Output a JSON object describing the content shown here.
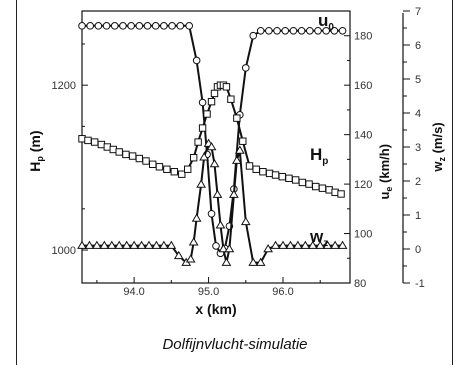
{
  "caption": "Dolfijnvlucht-simulatie",
  "chart_data": {
    "type": "line",
    "xlabel": "x (km)",
    "x_ticks": [
      94.0,
      95.0,
      96.0
    ],
    "xlim": [
      93.3,
      96.9
    ],
    "axes": {
      "Hp": {
        "label": "H",
        "label_sub": "p",
        "unit": "(m)",
        "ticks": [
          1000,
          1200
        ],
        "ylim": [
          960,
          1290
        ]
      },
      "ue": {
        "label": "u",
        "label_sub": "e",
        "unit": "(km/h)",
        "ticks": [
          80,
          100,
          120,
          140,
          160,
          180
        ],
        "ylim": [
          80,
          190
        ]
      },
      "wz": {
        "label": "w",
        "label_sub": "z",
        "unit": "(m/s)",
        "ticks": [
          -1,
          0,
          1,
          2,
          3,
          4,
          5,
          6,
          7
        ],
        "ylim": [
          -1,
          7
        ]
      }
    },
    "series": [
      {
        "name_main": "u",
        "name_sub": "0",
        "axis": "ue",
        "marker": "circle",
        "x": [
          93.3,
          93.41,
          93.52,
          93.63,
          93.74,
          93.85,
          93.96,
          94.07,
          94.18,
          94.29,
          94.4,
          94.51,
          94.62,
          94.74,
          94.84,
          94.92,
          94.98,
          95.04,
          95.1,
          95.16,
          95.22,
          95.28,
          95.34,
          95.42,
          95.5,
          95.6,
          95.7,
          95.81,
          95.92,
          96.03,
          96.14,
          96.25,
          96.36,
          96.47,
          96.58,
          96.69,
          96.8
        ],
        "y": [
          184,
          184,
          184,
          184,
          184,
          184,
          184,
          184,
          184,
          184,
          184,
          184,
          184,
          184,
          170,
          153,
          132,
          108,
          95,
          92,
          94,
          103,
          118,
          148,
          167,
          180,
          182,
          182,
          182,
          182,
          182,
          182,
          182,
          182,
          182,
          182,
          182
        ]
      },
      {
        "name_main": "H",
        "name_sub": "p",
        "axis": "Hp",
        "marker": "square",
        "x": [
          93.3,
          93.38,
          93.47,
          93.56,
          93.64,
          93.72,
          93.8,
          93.89,
          93.98,
          94.07,
          94.16,
          94.25,
          94.34,
          94.44,
          94.54,
          94.64,
          94.72,
          94.8,
          94.86,
          94.92,
          94.98,
          95.04,
          95.08,
          95.12,
          95.16,
          95.2,
          95.24,
          95.3,
          95.38,
          95.46,
          95.55,
          95.64,
          95.73,
          95.82,
          95.9,
          95.99,
          96.08,
          96.17,
          96.26,
          96.35,
          96.44,
          96.53,
          96.62,
          96.7,
          96.78
        ],
        "y": [
          1135,
          1133,
          1131,
          1128,
          1125,
          1122,
          1119,
          1116,
          1114,
          1111,
          1108,
          1104,
          1101,
          1098,
          1095,
          1092,
          1098,
          1112,
          1131,
          1148,
          1165,
          1180,
          1190,
          1198,
          1200,
          1200,
          1198,
          1183,
          1160,
          1132,
          1102,
          1098,
          1095,
          1093,
          1091,
          1089,
          1087,
          1085,
          1082,
          1080,
          1077,
          1075,
          1073,
          1070,
          1068
        ]
      },
      {
        "name_main": "w",
        "name_sub": "z",
        "axis": "wz",
        "marker": "triangle",
        "x": [
          93.3,
          93.4,
          93.5,
          93.6,
          93.7,
          93.8,
          93.9,
          94.0,
          94.1,
          94.2,
          94.3,
          94.4,
          94.5,
          94.6,
          94.7,
          94.76,
          94.8,
          94.84,
          94.9,
          94.94,
          95.0,
          95.04,
          95.08,
          95.12,
          95.16,
          95.2,
          95.24,
          95.28,
          95.34,
          95.38,
          95.42,
          95.5,
          95.6,
          95.7,
          95.8,
          95.9,
          96.0,
          96.1,
          96.2,
          96.3,
          96.4,
          96.5,
          96.6,
          96.7,
          96.8
        ],
        "y": [
          0.1,
          0.1,
          0.1,
          0.1,
          0.1,
          0.1,
          0.1,
          0.1,
          0.1,
          0.1,
          0.1,
          0.1,
          0.1,
          -0.2,
          -0.4,
          -0.3,
          0.2,
          0.9,
          1.9,
          2.7,
          3.1,
          3.0,
          2.5,
          1.6,
          0.7,
          0.0,
          -0.4,
          0.0,
          1.6,
          2.6,
          2.9,
          0.8,
          -0.4,
          -0.4,
          0.0,
          0.1,
          0.1,
          0.1,
          0.1,
          0.1,
          0.1,
          0.1,
          0.1,
          0.1,
          0.1
        ]
      }
    ]
  }
}
